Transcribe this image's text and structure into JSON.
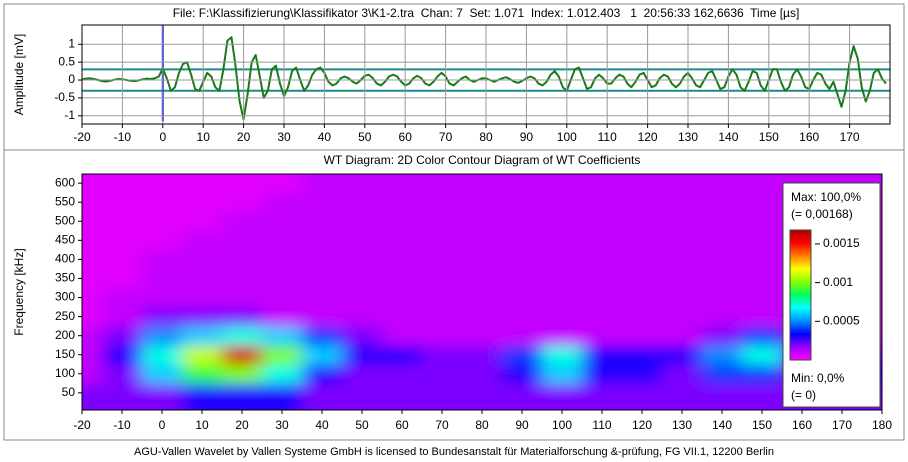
{
  "chart_data": [
    {
      "type": "line",
      "title": "File: F:\\Klassifizierung\\Klassifikator 3\\K1-2.tra  Chan: 7  Set: 1.071  Index: 1.012.403   1  20:56:33 162,6636  Time [µs]",
      "ylabel": "Amplitude [mV]",
      "xlim": [
        -20,
        180
      ],
      "ylim": [
        -1.23,
        1.54
      ],
      "xticks": [
        -20,
        -10,
        0,
        10,
        20,
        30,
        40,
        50,
        60,
        70,
        80,
        90,
        100,
        110,
        120,
        130,
        140,
        150,
        160,
        170
      ],
      "yticks": [
        1,
        0.5,
        0,
        -0.5,
        -1
      ],
      "grid": true,
      "color": "#1a7a1a",
      "hlines": [
        0.3,
        -0.3
      ],
      "hline_color": "#1a8a8a",
      "vline": 0,
      "vline_color": "#0000ff",
      "x": [
        -20,
        -19,
        -18,
        -17,
        -16,
        -15,
        -14,
        -13,
        -12,
        -11,
        -10,
        -9,
        -8,
        -7,
        -6,
        -5,
        -4,
        -3,
        -2,
        -1,
        0,
        1,
        2,
        3,
        4,
        5,
        6,
        7,
        8,
        9,
        10,
        11,
        12,
        13,
        14,
        15,
        16,
        17,
        18,
        19,
        20,
        21,
        22,
        23,
        24,
        25,
        26,
        27,
        28,
        29,
        30,
        31,
        32,
        33,
        34,
        35,
        36,
        37,
        38,
        39,
        40,
        41,
        42,
        43,
        44,
        45,
        46,
        47,
        48,
        49,
        50,
        51,
        52,
        53,
        54,
        55,
        56,
        57,
        58,
        59,
        60,
        61,
        62,
        63,
        64,
        65,
        66,
        67,
        68,
        69,
        70,
        71,
        72,
        73,
        74,
        75,
        76,
        77,
        78,
        79,
        80,
        81,
        82,
        83,
        84,
        85,
        86,
        87,
        88,
        89,
        90,
        91,
        92,
        93,
        94,
        95,
        96,
        97,
        98,
        99,
        100,
        101,
        102,
        103,
        104,
        105,
        106,
        107,
        108,
        109,
        110,
        111,
        112,
        113,
        114,
        115,
        116,
        117,
        118,
        119,
        120,
        121,
        122,
        123,
        124,
        125,
        126,
        127,
        128,
        129,
        130,
        131,
        132,
        133,
        134,
        135,
        136,
        137,
        138,
        139,
        140,
        141,
        142,
        143,
        144,
        145,
        146,
        147,
        148,
        149,
        150,
        151,
        152,
        153,
        154,
        155,
        156,
        157,
        158,
        159,
        160,
        161,
        162,
        163,
        164,
        165,
        166,
        167,
        168,
        169,
        170,
        171,
        172,
        173,
        174,
        175,
        176,
        177,
        178,
        179
      ],
      "values": [
        0.02,
        0.04,
        0.05,
        0.03,
        0,
        -0.03,
        -0.04,
        -0.02,
        0.01,
        0.03,
        0.02,
        0,
        -0.02,
        -0.03,
        -0.01,
        0.02,
        0.04,
        0.03,
        0.05,
        0.1,
        0.32,
        0.05,
        -0.3,
        -0.2,
        0.2,
        0.45,
        0.5,
        0.15,
        -0.25,
        -0.3,
        -0.05,
        0.2,
        0.1,
        -0.2,
        -0.3,
        0.3,
        1.1,
        1.2,
        0.4,
        -0.6,
        -1.1,
        -0.4,
        0.5,
        0.7,
        0.1,
        -0.5,
        -0.3,
        0.3,
        0.4,
        -0.1,
        -0.45,
        -0.2,
        0.25,
        0.35,
        0,
        -0.3,
        -0.15,
        0.15,
        0.3,
        0.35,
        0.2,
        -0.05,
        -0.15,
        -0.1,
        0.05,
        0.1,
        0.05,
        -0.05,
        -0.1,
        0,
        0.12,
        0.15,
        0.05,
        -0.1,
        -0.15,
        -0.05,
        0.1,
        0.15,
        0.1,
        -0.05,
        -0.15,
        -0.1,
        0.05,
        0.12,
        0.05,
        -0.1,
        -0.15,
        -0.05,
        0.1,
        0.2,
        0.1,
        -0.1,
        -0.15,
        -0.05,
        0.05,
        0.1,
        0,
        -0.05,
        0,
        0.05,
        0.05,
        0,
        -0.05,
        0,
        0.05,
        0.08,
        0.02,
        -0.05,
        -0.08,
        -0.02,
        0.05,
        0.1,
        0.05,
        -0.1,
        -0.15,
        -0.05,
        0.15,
        0.25,
        0.1,
        -0.2,
        -0.3,
        0,
        0.3,
        0.35,
        0.05,
        -0.25,
        -0.2,
        0.05,
        0.15,
        0.05,
        -0.1,
        -0.1,
        0.05,
        0.15,
        0.1,
        -0.1,
        -0.2,
        -0.05,
        0.15,
        0.2,
        0,
        -0.2,
        -0.15,
        0.05,
        0.15,
        0.1,
        -0.1,
        -0.2,
        -0.1,
        0.1,
        0.2,
        0.05,
        -0.15,
        -0.2,
        0,
        0.2,
        0.25,
        0,
        -0.25,
        -0.2,
        0.1,
        0.3,
        0.15,
        -0.2,
        -0.3,
        -0.05,
        0.25,
        0.2,
        -0.15,
        -0.3,
        0,
        0.3,
        0.3,
        -0.05,
        -0.3,
        -0.2,
        0.15,
        0.3,
        0.1,
        -0.2,
        -0.25,
        0,
        0.2,
        0.15,
        -0.1,
        -0.25,
        -0.05,
        -0.4,
        -0.75,
        -0.3,
        0.5,
        0.95,
        0.6,
        -0.2,
        -0.6,
        -0.3,
        0.2,
        0.3,
        0.05,
        -0.1
      ]
    },
    {
      "type": "contour",
      "title": "WT Diagram: 2D Color Contour Diagram of WT Coefficients",
      "ylabel": "Frequency [kHz]",
      "xlim": [
        -20,
        180
      ],
      "ylim": [
        5,
        624
      ],
      "xticks": [
        -20,
        -10,
        0,
        10,
        20,
        30,
        40,
        50,
        60,
        70,
        80,
        90,
        100,
        110,
        120,
        130,
        140,
        150,
        160,
        170,
        180
      ],
      "yticks": [
        600,
        550,
        500,
        450,
        400,
        350,
        300,
        250,
        200,
        150,
        100,
        50
      ],
      "grid": false,
      "x": [
        -20,
        -10,
        0,
        10,
        20,
        30,
        40,
        50,
        60,
        70,
        80,
        90,
        100,
        110,
        120,
        130,
        140,
        150,
        160,
        170,
        180
      ],
      "y": [
        50,
        100,
        150,
        200,
        250,
        300,
        350,
        400,
        450,
        500,
        550,
        600
      ],
      "z": [
        [
          0.0002,
          0.0002,
          0.0002,
          0.0003,
          0.0003,
          0.0003,
          0.0002,
          0.0002,
          0.0002,
          0.0002,
          0.0002,
          0.0002,
          0.0002,
          0.0002,
          0.0002,
          0.0002,
          0.0002,
          0.0002,
          0.0002,
          0.0002,
          0.0002
        ],
        [
          0.0001,
          0.0002,
          0.0006,
          0.0009,
          0.001,
          0.0007,
          0.0003,
          0.0002,
          0.0002,
          0.0002,
          0.0002,
          0.0003,
          0.0006,
          0.0003,
          0.0003,
          0.0002,
          0.0004,
          0.0004,
          0.0002,
          0.0001,
          0.0003
        ],
        [
          0.0001,
          0.0003,
          0.0007,
          0.0011,
          0.0016,
          0.001,
          0.0006,
          0.0003,
          0.0003,
          0.0002,
          0.0002,
          0.0004,
          0.0007,
          0.0003,
          0.0003,
          0.0003,
          0.0005,
          0.0007,
          0.0003,
          0.0002,
          0.0002
        ],
        [
          0.0001,
          0.0002,
          0.0005,
          0.0006,
          0.0007,
          0.0006,
          0.0004,
          0.0002,
          0.0001,
          0.0001,
          0.0001,
          0.0001,
          0.0001,
          0.0001,
          0.0001,
          0.0001,
          0.0002,
          0.0004,
          0.0002,
          0.0001,
          0.0001
        ],
        [
          5e-05,
          0.0001,
          0.0002,
          0.0002,
          0.0002,
          0.0001,
          0.0001,
          0.0001,
          0.0001,
          0.0001,
          0.0001,
          0.0001,
          0.0001,
          0.0001,
          0.0001,
          0.0001,
          0.0001,
          0.0001,
          0.0001,
          0.0001,
          0.0001
        ],
        [
          5e-05,
          0.0001,
          0.0001,
          0.0001,
          0.0001,
          0.0001,
          0.0001,
          0.0001,
          0.0001,
          0.0001,
          0.0001,
          0.0001,
          0.0001,
          0.0001,
          0.0001,
          0.0001,
          0.0001,
          0.0001,
          0.0001,
          0.0001,
          0.0001
        ],
        [
          5e-05,
          5e-05,
          0.0001,
          0.0001,
          0.0001,
          0.0001,
          0.0001,
          0.0001,
          0.0001,
          0.0001,
          0.0001,
          0.0001,
          0.0001,
          0.0001,
          0.0001,
          0.0001,
          0.0001,
          0.0001,
          0.0001,
          0.0001,
          0.0001
        ],
        [
          5e-05,
          5e-05,
          0.0001,
          0.0001,
          0.0001,
          0.0001,
          0.0001,
          0.0001,
          0.0001,
          0.0001,
          0.0001,
          0.0001,
          0.0001,
          0.0001,
          0.0001,
          0.0001,
          0.0001,
          0.0001,
          0.0001,
          0.0001,
          0.0001
        ],
        [
          5e-05,
          5e-05,
          5e-05,
          0.0001,
          0.0001,
          0.0001,
          0.0001,
          0.0001,
          0.0001,
          0.0001,
          0.0001,
          0.0001,
          0.0001,
          0.0001,
          0.0001,
          0.0001,
          0.0001,
          0.0001,
          0.0001,
          0.0001,
          0.0001
        ],
        [
          5e-05,
          5e-05,
          5e-05,
          5e-05,
          0.0001,
          0.0001,
          0.0001,
          0.0001,
          0.0001,
          0.0001,
          0.0001,
          0.0001,
          0.0001,
          0.0001,
          0.0001,
          0.0001,
          0.0001,
          0.0001,
          0.0001,
          0.0001,
          0.0001
        ],
        [
          5e-05,
          5e-05,
          5e-05,
          5e-05,
          5e-05,
          0.0001,
          0.0001,
          0.0001,
          0.0001,
          0.0001,
          0.0001,
          0.0001,
          0.0001,
          0.0001,
          0.0001,
          0.0001,
          0.0001,
          0.0001,
          0.0001,
          0.0001,
          0.0001
        ],
        [
          5e-05,
          5e-05,
          5e-05,
          5e-05,
          5e-05,
          5e-05,
          0.0001,
          0.0001,
          0.0001,
          0.0001,
          0.0001,
          0.0001,
          0.0001,
          0.0001,
          0.0001,
          0.0001,
          0.0001,
          0.0001,
          0.0001,
          0.0001,
          0.0001
        ]
      ],
      "zlim": [
        0,
        0.00168
      ],
      "zticks": [
        0.0015,
        0.001,
        0.0005
      ],
      "colors": [
        "#ff00ff",
        "#9a00ff",
        "#0000ff",
        "#0090ff",
        "#00ffff",
        "#00ff60",
        "#80ff00",
        "#ffff00",
        "#ff8000",
        "#ff0000",
        "#b00000"
      ],
      "max_label": "Max: 100,0%",
      "max_note": "(= 0,00168)",
      "min_label": "Min: 0,0%",
      "min_note": "(= 0)"
    }
  ],
  "footer": "AGU-Vallen Wavelet by Vallen Systeme GmbH is licensed to Bundesanstalt für Materialforschung &-prüfung, FG VII.1, 12200 Berlin"
}
